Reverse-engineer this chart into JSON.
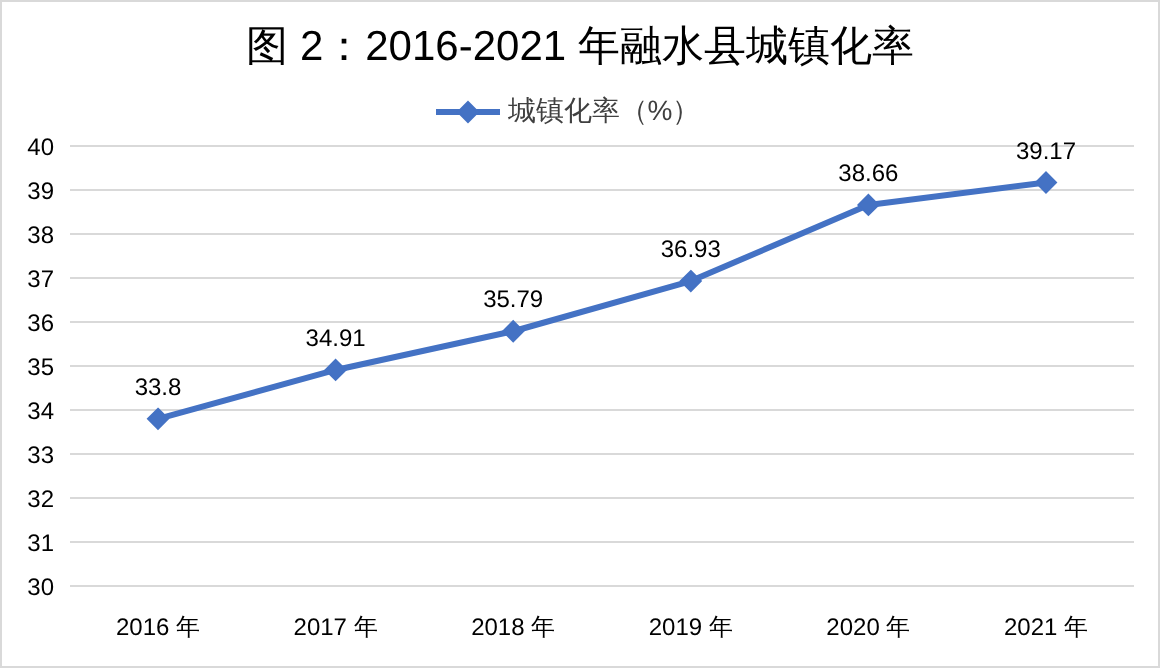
{
  "chart_data": {
    "type": "line",
    "title": "图 2：2016-2021 年融水县城镇化率",
    "categories": [
      "2016 年",
      "2017 年",
      "2018 年",
      "2019 年",
      "2020 年",
      "2021 年"
    ],
    "series": [
      {
        "name": "城镇化率（%）",
        "color": "#4472c4",
        "values": [
          33.8,
          34.91,
          35.79,
          36.93,
          38.66,
          39.17
        ]
      }
    ],
    "ylim": [
      30,
      40
    ],
    "yticks": [
      30,
      31,
      32,
      33,
      34,
      35,
      36,
      37,
      38,
      39,
      40
    ],
    "grid": "y",
    "legend": "top",
    "marker": "diamond",
    "line_style": "solid",
    "data_labels": true
  }
}
